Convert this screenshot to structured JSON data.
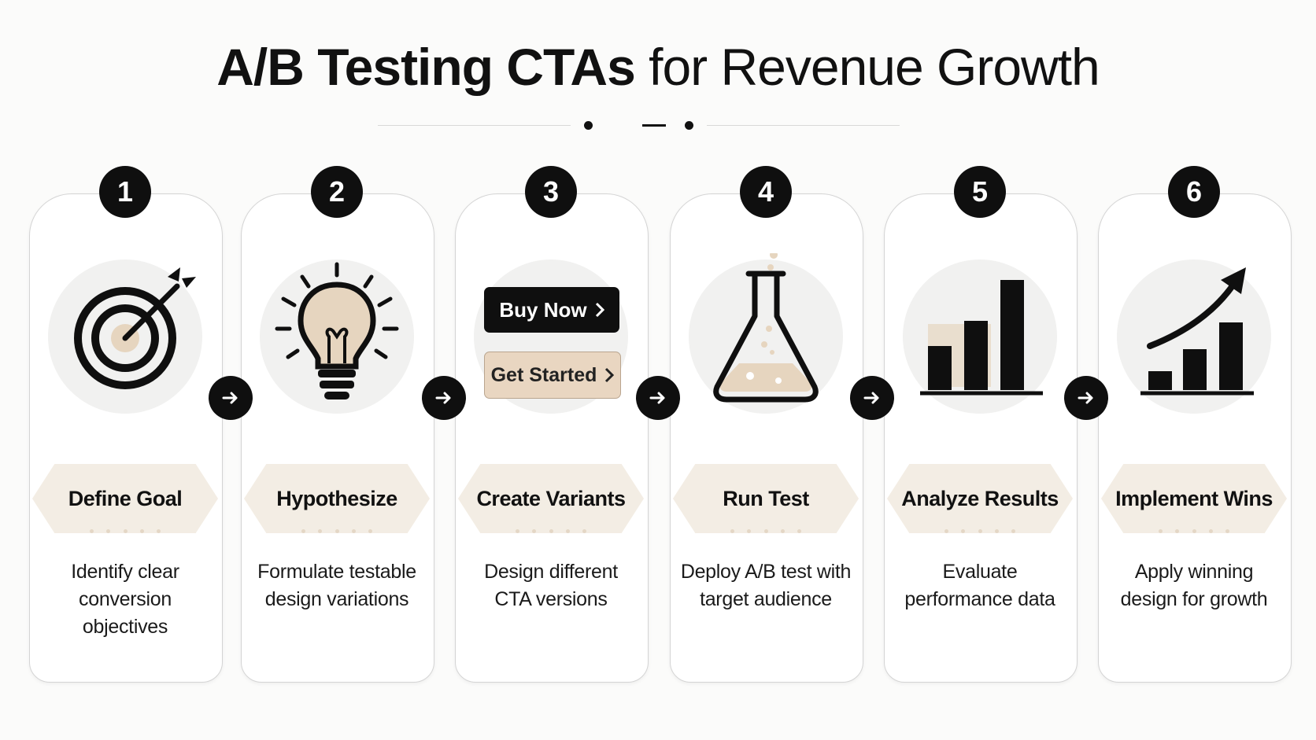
{
  "header": {
    "title_strong": "A/B Testing CTAs",
    "title_light": "for Revenue Growth"
  },
  "colors": {
    "background": "#fbfbfa",
    "dark": "#0f0f0f",
    "accent_beige": "#e9d6c1",
    "banner_fill": "#f3ede4"
  },
  "steps": [
    {
      "number": "1",
      "title": "Define Goal",
      "description": "Identify clear conversion objectives",
      "icon": "target-icon"
    },
    {
      "number": "2",
      "title": "Hypothesize",
      "description": "Formulate testable design variations",
      "icon": "lightbulb-icon"
    },
    {
      "number": "3",
      "title": "Create Variants",
      "description": "Design different CTA versions",
      "icon": "cta-buttons-icon",
      "cta_primary": "Buy Now",
      "cta_secondary": "Get Started"
    },
    {
      "number": "4",
      "title": "Run Test",
      "description": "Deploy A/B test with target audience",
      "icon": "flask-icon"
    },
    {
      "number": "5",
      "title": "Analyze Results",
      "description": "Evaluate performance data",
      "icon": "bar-chart-icon"
    },
    {
      "number": "6",
      "title": "Implement Wins",
      "description": "Apply winning design for growth",
      "icon": "growth-chart-icon"
    }
  ],
  "connector_icon": "arrow-right-icon"
}
